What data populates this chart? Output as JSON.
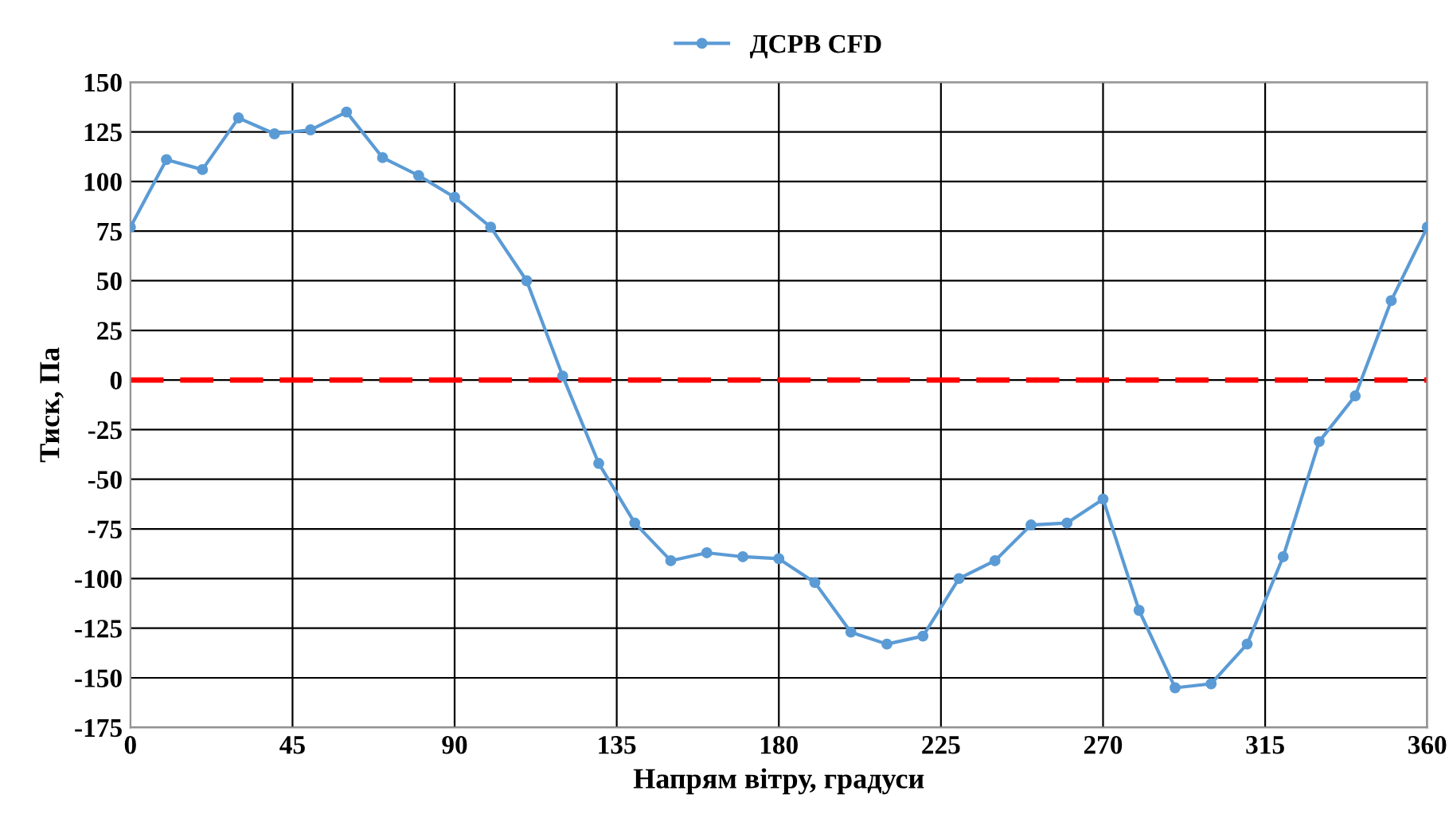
{
  "chart_data": {
    "type": "line",
    "xlabel": "Напрям вітру, градуси",
    "ylabel": "Тиск, Па",
    "x": [
      0,
      10,
      20,
      30,
      40,
      50,
      60,
      70,
      80,
      90,
      100,
      110,
      120,
      130,
      140,
      150,
      160,
      170,
      180,
      190,
      200,
      210,
      220,
      230,
      240,
      250,
      260,
      270,
      280,
      290,
      300,
      310,
      320,
      330,
      340,
      350,
      360
    ],
    "series": [
      {
        "name": "ДСРВ CFD",
        "color": "#5b9bd5",
        "values": [
          77,
          111,
          106,
          132,
          124,
          126,
          135,
          112,
          103,
          92,
          77,
          50,
          2,
          -42,
          -72,
          -91,
          -87,
          -89,
          -90,
          -102,
          -127,
          -133,
          -129,
          -100,
          -91,
          -73,
          -72,
          -60,
          -116,
          -155,
          -153,
          -133,
          -89,
          -31,
          -8,
          40,
          77
        ]
      }
    ],
    "xlim": [
      0,
      360
    ],
    "xticks": [
      0,
      45,
      90,
      135,
      180,
      225,
      270,
      315,
      360
    ],
    "ylim": [
      -175,
      150
    ],
    "yticks": [
      -175,
      -150,
      -125,
      -100,
      -75,
      -50,
      -25,
      0,
      25,
      50,
      75,
      100,
      125,
      150
    ],
    "ref_lines": [
      {
        "axis": "y",
        "value": 0,
        "color": "#ff0000",
        "line_style": "dashed"
      }
    ],
    "grid": true,
    "legend": "top",
    "marker": "circle",
    "line_style": "solid"
  }
}
